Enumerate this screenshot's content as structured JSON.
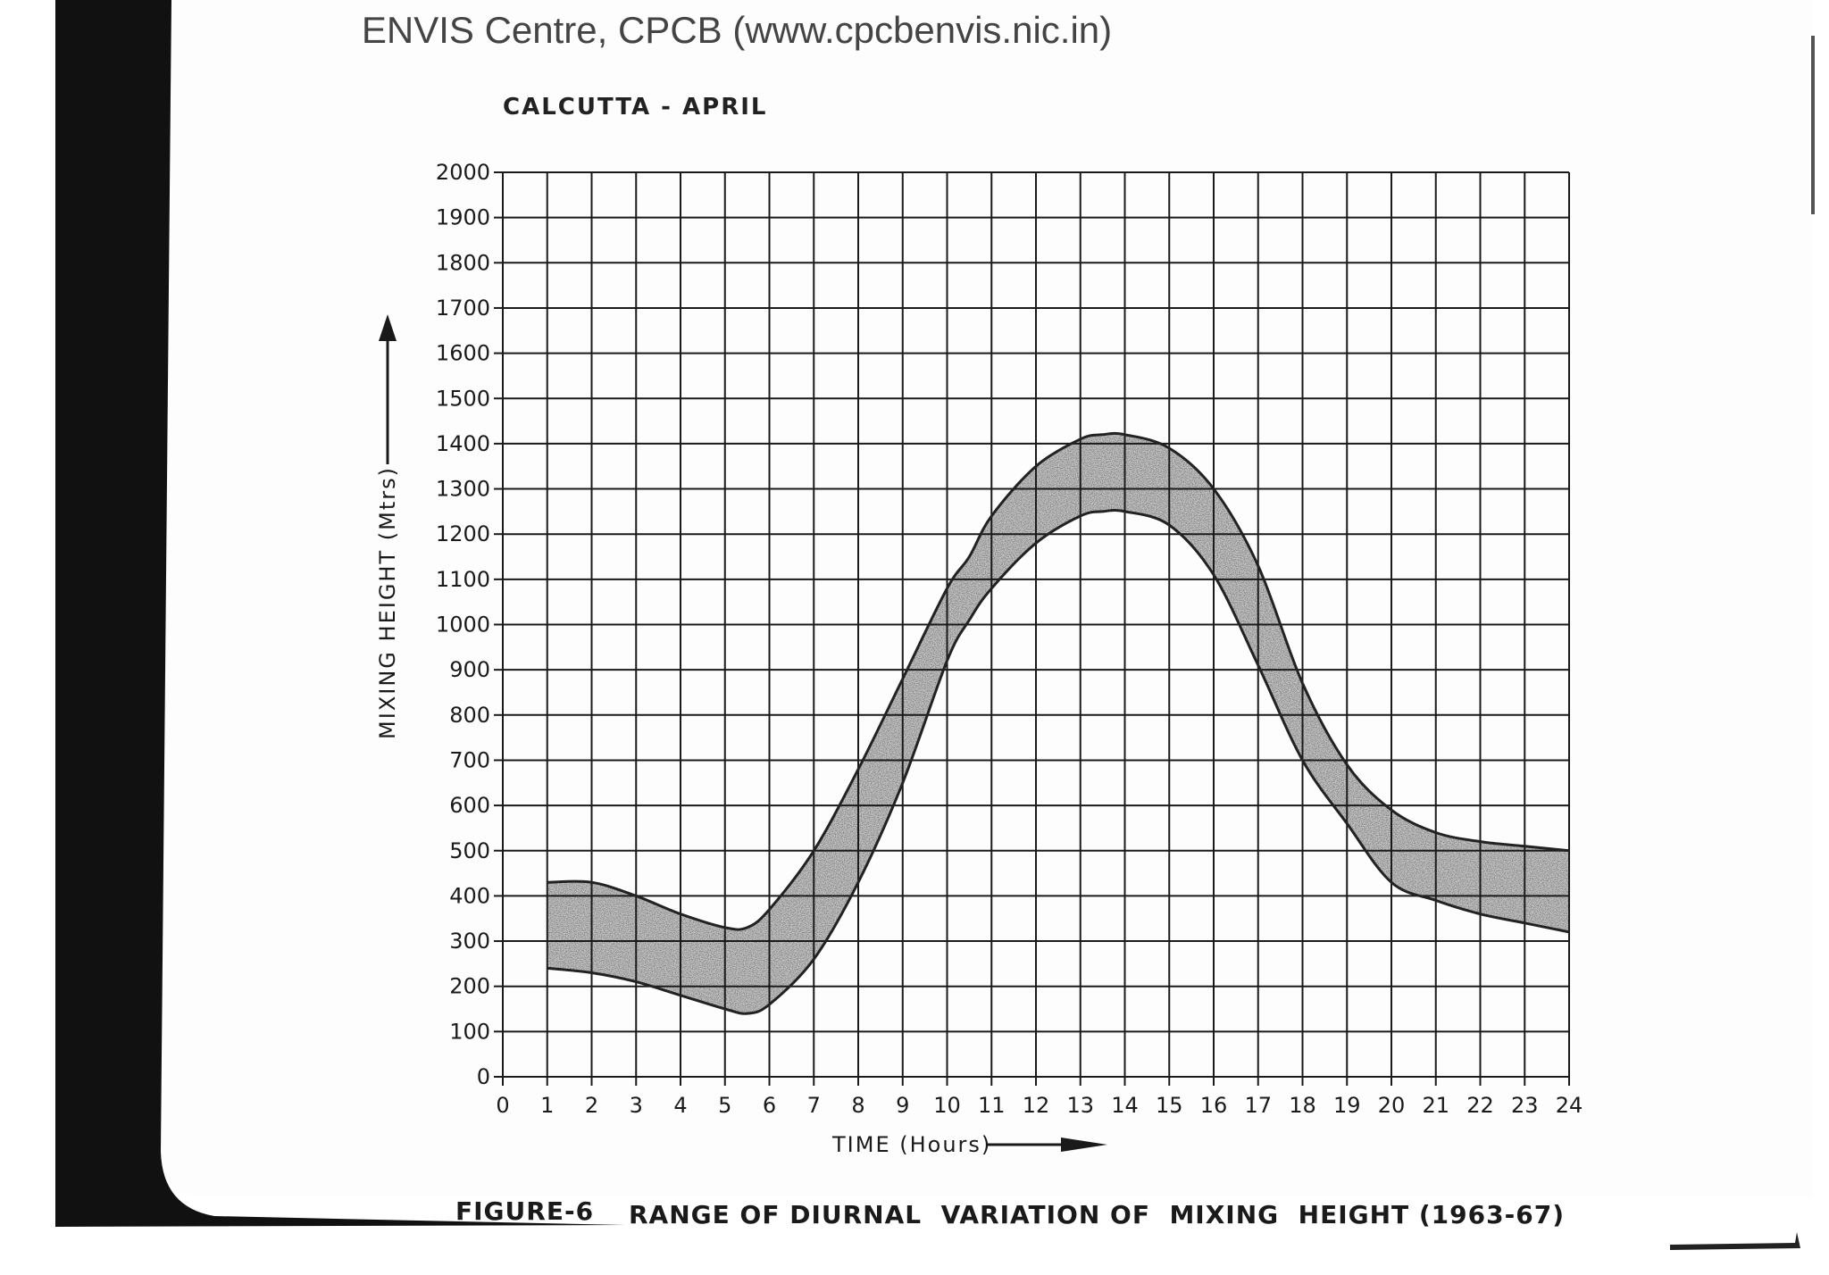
{
  "header": {
    "source_text": "ENVIS Centre, CPCB (www.cpcbenvis.nic.in)"
  },
  "caption": {
    "figure_label": "FIGURE-6",
    "caption_text": "RANGE OF DIURNAL  VARIATION OF  MIXING  HEIGHT (1963-67)"
  },
  "colors": {
    "ink": "#1a1a1a",
    "band_fill": "#8a8a8a",
    "scan_margin": "#111111"
  },
  "chart_data": {
    "type": "area",
    "title": "CALCUTTA - APRIL",
    "xlabel": "TIME (Hours)",
    "ylabel": "MIXING  HEIGHT  (Mtrs)",
    "xlim": [
      0,
      24
    ],
    "ylim": [
      0,
      2000
    ],
    "grid": true,
    "x_ticks": [
      0,
      1,
      2,
      3,
      4,
      5,
      6,
      7,
      8,
      9,
      10,
      11,
      12,
      13,
      14,
      15,
      16,
      17,
      18,
      19,
      20,
      21,
      22,
      23,
      24
    ],
    "y_ticks": [
      0,
      100,
      200,
      300,
      400,
      500,
      600,
      700,
      800,
      900,
      1000,
      1100,
      1200,
      1300,
      1400,
      1500,
      1600,
      1700,
      1800,
      1900,
      2000
    ],
    "series": [
      {
        "x": [
          1,
          2,
          3,
          4,
          5,
          5.5,
          6,
          7,
          8,
          9,
          10,
          10.5,
          11,
          12,
          13,
          13.5,
          14,
          15,
          16,
          17,
          18,
          19,
          20,
          21,
          22,
          23,
          24
        ],
        "values": [
          430,
          430,
          400,
          360,
          330,
          330,
          370,
          500,
          680,
          880,
          1080,
          1150,
          1240,
          1350,
          1410,
          1420,
          1420,
          1390,
          1300,
          1130,
          870,
          690,
          590,
          540,
          520,
          510,
          500
        ]
      },
      {
        "x": [
          1,
          2,
          3,
          4,
          5,
          5.5,
          6,
          7,
          8,
          9,
          10,
          10.5,
          11,
          12,
          13,
          13.5,
          14,
          15,
          16,
          17,
          18,
          19,
          20,
          21,
          22,
          23,
          24
        ],
        "values": [
          240,
          230,
          210,
          180,
          150,
          140,
          160,
          260,
          430,
          650,
          920,
          1010,
          1080,
          1180,
          1240,
          1250,
          1250,
          1220,
          1110,
          910,
          700,
          560,
          430,
          390,
          360,
          340,
          320
        ]
      }
    ]
  }
}
